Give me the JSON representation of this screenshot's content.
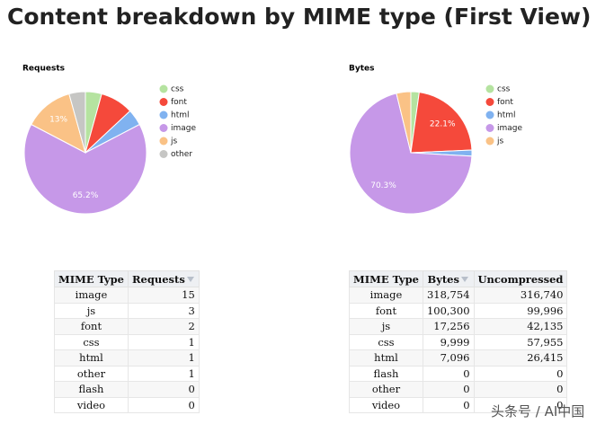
{
  "title": "Content breakdown by MIME type (First View)",
  "chart_data": [
    {
      "type": "pie",
      "title": "Requests",
      "categories": [
        "css",
        "font",
        "html",
        "image",
        "js",
        "other"
      ],
      "values": [
        4.3,
        8.7,
        4.3,
        65.2,
        13,
        4.3
      ],
      "value_labels": [
        null,
        null,
        null,
        "65.2%",
        "13%",
        null
      ],
      "colors": [
        "#b5e3a0",
        "#f5493b",
        "#80b2f0",
        "#c698e8",
        "#fac286",
        "#c6c6c4"
      ],
      "legend": "right"
    },
    {
      "type": "pie",
      "title": "Bytes",
      "categories": [
        "css",
        "font",
        "html",
        "image",
        "js"
      ],
      "values": [
        2.2,
        22.1,
        1.6,
        70.3,
        3.8
      ],
      "value_labels": [
        null,
        "22.1%",
        null,
        "70.3%",
        null
      ],
      "colors": [
        "#b5e3a0",
        "#f5493b",
        "#80b2f0",
        "#c698e8",
        "#fac286"
      ],
      "legend": "right"
    }
  ],
  "tables": [
    {
      "columns": [
        "MIME Type",
        "Requests"
      ],
      "rows": [
        [
          "image",
          "15"
        ],
        [
          "js",
          "3"
        ],
        [
          "font",
          "2"
        ],
        [
          "css",
          "1"
        ],
        [
          "html",
          "1"
        ],
        [
          "other",
          "1"
        ],
        [
          "flash",
          "0"
        ],
        [
          "video",
          "0"
        ]
      ]
    },
    {
      "columns": [
        "MIME Type",
        "Bytes",
        "Uncompressed"
      ],
      "rows": [
        [
          "image",
          "318,754",
          "316,740"
        ],
        [
          "font",
          "100,300",
          "99,996"
        ],
        [
          "js",
          "17,256",
          "42,135"
        ],
        [
          "css",
          "9,999",
          "57,955"
        ],
        [
          "html",
          "7,096",
          "26,415"
        ],
        [
          "flash",
          "0",
          "0"
        ],
        [
          "other",
          "0",
          "0"
        ],
        [
          "video",
          "0",
          "0"
        ]
      ]
    }
  ],
  "watermark": "头条号 / AI中国"
}
